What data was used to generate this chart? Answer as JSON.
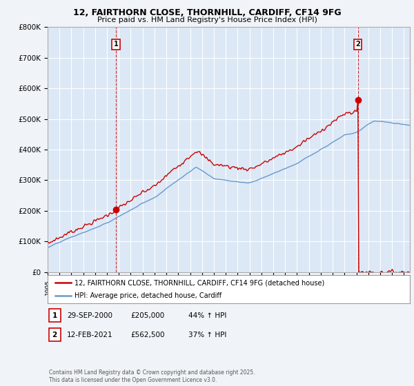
{
  "title_line1": "12, FAIRTHORN CLOSE, THORNHILL, CARDIFF, CF14 9FG",
  "title_line2": "Price paid vs. HM Land Registry's House Price Index (HPI)",
  "background_color": "#f0f4f8",
  "plot_bg_color": "#dce8f5",
  "grid_color": "#ffffff",
  "red_color": "#cc0000",
  "blue_color": "#6699cc",
  "marker1_date_x": 2000.75,
  "marker2_date_x": 2021.12,
  "marker1_y": 205000,
  "marker2_y": 562500,
  "legend_label_red": "12, FAIRTHORN CLOSE, THORNHILL, CARDIFF, CF14 9FG (detached house)",
  "legend_label_blue": "HPI: Average price, detached house, Cardiff",
  "table_row1": [
    "1",
    "29-SEP-2000",
    "£205,000",
    "44% ↑ HPI"
  ],
  "table_row2": [
    "2",
    "12-FEB-2021",
    "£562,500",
    "37% ↑ HPI"
  ],
  "copyright_text": "Contains HM Land Registry data © Crown copyright and database right 2025.\nThis data is licensed under the Open Government Licence v3.0.",
  "xmin": 1995,
  "xmax": 2025.5,
  "ymin": 0,
  "ymax": 800000,
  "yticks": [
    0,
    100000,
    200000,
    300000,
    400000,
    500000,
    600000,
    700000,
    800000
  ],
  "ylabels": [
    "£0",
    "£100K",
    "£200K",
    "£300K",
    "£400K",
    "£500K",
    "£600K",
    "£700K",
    "£800K"
  ]
}
